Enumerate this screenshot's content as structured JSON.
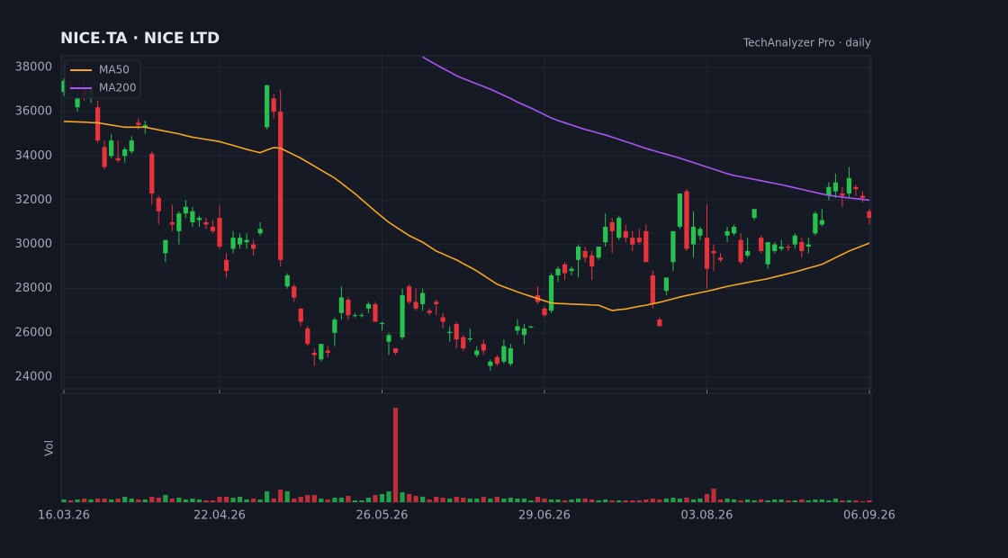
{
  "chart_data": {
    "type": "candlestick",
    "title": "NICE.TA  ·  NICE LTD",
    "subtitle": "TechAnalyzer Pro · daily",
    "volume_label": "Vol",
    "up_color": "#26c14f",
    "down_color": "#e8333d",
    "grid": true,
    "legend": "upper left",
    "ylim": [
      23470,
      38530
    ],
    "yticks": [
      24000,
      26000,
      28000,
      30000,
      32000,
      34000,
      36000,
      38000
    ],
    "categories": [
      "16.03.26",
      null,
      null,
      null,
      null,
      null,
      null,
      null,
      null,
      null,
      null,
      null,
      null,
      null,
      null,
      null,
      null,
      null,
      null,
      null,
      null,
      null,
      null,
      "22.04.26",
      null,
      null,
      null,
      null,
      null,
      null,
      null,
      null,
      null,
      null,
      null,
      null,
      null,
      null,
      null,
      null,
      null,
      null,
      null,
      null,
      null,
      null,
      null,
      "26.05.26",
      null,
      null,
      null,
      null,
      null,
      null,
      null,
      null,
      null,
      null,
      null,
      null,
      null,
      null,
      null,
      null,
      null,
      null,
      null,
      null,
      null,
      null,
      null,
      "29.06.26",
      null,
      null,
      null,
      null,
      null,
      null,
      null,
      null,
      null,
      null,
      null,
      null,
      null,
      null,
      null,
      null,
      null,
      null,
      null,
      null,
      null,
      null,
      null,
      "03.08.26",
      null,
      null,
      null,
      null,
      null,
      null,
      null,
      null,
      null,
      null,
      null,
      null,
      null,
      null,
      null,
      null,
      null,
      null,
      null,
      null,
      null,
      null,
      null,
      "06.09.26"
    ],
    "ohlc": [
      [
        36900,
        37500,
        36700,
        37400
      ],
      [
        37200,
        37600,
        36800,
        37000
      ],
      [
        36200,
        36900,
        36000,
        36600
      ],
      [
        37000,
        37400,
        36500,
        36700
      ],
      [
        36700,
        37200,
        36400,
        37000
      ],
      [
        36200,
        36500,
        34600,
        34700
      ],
      [
        34400,
        34700,
        33400,
        33500
      ],
      [
        34000,
        35000,
        33900,
        34700
      ],
      [
        33900,
        34700,
        33700,
        33800
      ],
      [
        34000,
        34400,
        33700,
        34300
      ],
      [
        34200,
        34900,
        34100,
        34700
      ],
      [
        35500,
        35700,
        35200,
        35400
      ],
      [
        35300,
        35600,
        35000,
        35400
      ],
      [
        34100,
        34200,
        31800,
        32300
      ],
      [
        32100,
        32200,
        30900,
        31500
      ],
      [
        29600,
        30200,
        29200,
        30200
      ],
      [
        31000,
        31800,
        30600,
        30900
      ],
      [
        30600,
        31500,
        30000,
        31400
      ],
      [
        31400,
        32000,
        31200,
        31700
      ],
      [
        31000,
        31700,
        30800,
        31500
      ],
      [
        31100,
        31300,
        30800,
        31200
      ],
      [
        31000,
        31200,
        30700,
        30900
      ],
      [
        30800,
        31100,
        30500,
        30600
      ],
      [
        31200,
        31800,
        29800,
        29900
      ],
      [
        29300,
        29600,
        28500,
        28800
      ],
      [
        29800,
        30600,
        29600,
        30300
      ],
      [
        30000,
        30500,
        29800,
        30300
      ],
      [
        30100,
        30500,
        29800,
        30200
      ],
      [
        30000,
        30200,
        29500,
        29800
      ],
      [
        30500,
        31000,
        30400,
        30700
      ],
      [
        35300,
        37200,
        35200,
        37200
      ],
      [
        36600,
        36800,
        35700,
        36000
      ],
      [
        36000,
        37000,
        29000,
        29300
      ],
      [
        28100,
        28700,
        28000,
        28600
      ],
      [
        28100,
        28200,
        27400,
        27600
      ],
      [
        27100,
        27100,
        26300,
        26500
      ],
      [
        26200,
        26300,
        25400,
        25500
      ],
      [
        25100,
        25300,
        24500,
        25000
      ],
      [
        24800,
        25500,
        24700,
        25500
      ],
      [
        25200,
        25400,
        24900,
        25100
      ],
      [
        26000,
        26700,
        25400,
        26600
      ],
      [
        26900,
        28100,
        26600,
        27600
      ],
      [
        27500,
        27600,
        26600,
        26800
      ],
      [
        26800,
        26900,
        26700,
        26800
      ],
      [
        26800,
        26900,
        26700,
        26800
      ],
      [
        27100,
        27400,
        26900,
        27300
      ],
      [
        27300,
        27400,
        26500,
        26500
      ],
      [
        26400,
        26500,
        26100,
        26450
      ],
      [
        25600,
        26000,
        25000,
        25900
      ],
      [
        25300,
        25300,
        25000,
        25100
      ],
      [
        25800,
        28000,
        25700,
        27700
      ],
      [
        28100,
        28200,
        27300,
        27400
      ],
      [
        27400,
        28000,
        27000,
        27100
      ],
      [
        27300,
        28000,
        27000,
        27800
      ],
      [
        27000,
        27100,
        26800,
        26900
      ],
      [
        27400,
        27500,
        26800,
        27300
      ],
      [
        26700,
        26900,
        26200,
        26500
      ],
      [
        26000,
        26300,
        25600,
        26050
      ],
      [
        26400,
        26500,
        25300,
        25700
      ],
      [
        25800,
        25900,
        25200,
        25300
      ],
      [
        25700,
        26200,
        25600,
        25750
      ],
      [
        25000,
        25400,
        24900,
        25200
      ],
      [
        25500,
        25700,
        25000,
        25200
      ],
      [
        24500,
        24800,
        24300,
        24700
      ],
      [
        24900,
        25000,
        24500,
        24600
      ],
      [
        24700,
        25700,
        24600,
        25400
      ],
      [
        24600,
        25500,
        24500,
        25300
      ],
      [
        26100,
        26600,
        25900,
        26300
      ],
      [
        25900,
        26400,
        25500,
        26200
      ],
      [
        26250,
        26300,
        26200,
        26300
      ],
      [
        27700,
        28100,
        27300,
        27400
      ],
      [
        27100,
        27200,
        26700,
        26800
      ],
      [
        27000,
        28700,
        26900,
        28600
      ],
      [
        28600,
        29000,
        28300,
        28900
      ],
      [
        29100,
        29200,
        28400,
        28700
      ],
      [
        28800,
        29000,
        28600,
        28900
      ],
      [
        29300,
        30000,
        28500,
        29900
      ],
      [
        29700,
        29900,
        29200,
        29400
      ],
      [
        29500,
        29700,
        28400,
        29000
      ],
      [
        29400,
        29900,
        29300,
        29900
      ],
      [
        30100,
        31400,
        29900,
        30800
      ],
      [
        31000,
        31200,
        29600,
        30600
      ],
      [
        30300,
        31300,
        30200,
        31200
      ],
      [
        30600,
        30900,
        30100,
        30300
      ],
      [
        30300,
        30600,
        29700,
        30000
      ],
      [
        30300,
        30700,
        30000,
        30100
      ],
      [
        30600,
        30900,
        29200,
        29200
      ],
      [
        28600,
        28800,
        27100,
        27300
      ],
      [
        26600,
        26700,
        26300,
        26300
      ],
      [
        27900,
        28500,
        27700,
        28500
      ],
      [
        29200,
        30600,
        28800,
        30600
      ],
      [
        30800,
        32300,
        30700,
        32300
      ],
      [
        32400,
        32500,
        29700,
        29800
      ],
      [
        30000,
        31500,
        29400,
        30800
      ],
      [
        30400,
        30800,
        30200,
        30700
      ],
      [
        30300,
        31800,
        28000,
        28900
      ],
      [
        29700,
        30000,
        28800,
        29600
      ],
      [
        29400,
        29600,
        29200,
        29300
      ],
      [
        30400,
        30800,
        30100,
        30600
      ],
      [
        30500,
        30900,
        30400,
        30800
      ],
      [
        30200,
        30500,
        29100,
        29200
      ],
      [
        29500,
        30300,
        29400,
        29700
      ],
      [
        31200,
        31600,
        31100,
        31600
      ],
      [
        30300,
        30400,
        29600,
        29700
      ],
      [
        29100,
        30100,
        28900,
        30100
      ],
      [
        29700,
        30100,
        29600,
        30000
      ],
      [
        29800,
        30200,
        29700,
        29900
      ],
      [
        29900,
        30000,
        29700,
        29850
      ],
      [
        30000,
        30500,
        29800,
        30400
      ],
      [
        30100,
        30300,
        29400,
        29700
      ],
      [
        29900,
        30300,
        29600,
        30000
      ],
      [
        30500,
        31500,
        30400,
        31400
      ],
      [
        30900,
        31600,
        30800,
        31100
      ],
      [
        32200,
        32800,
        32000,
        32600
      ],
      [
        32400,
        33200,
        32100,
        32800
      ],
      [
        32300,
        32600,
        31700,
        32200
      ],
      [
        32300,
        33500,
        32100,
        33000
      ],
      [
        32600,
        32700,
        32200,
        32500
      ],
      [
        32200,
        32400,
        31900,
        32100
      ],
      [
        31500,
        31600,
        30900,
        31200
      ]
    ],
    "series": [
      {
        "name": "MA50",
        "color": "#f5a623",
        "values": [
          35560,
          35550,
          35540,
          35530,
          35510,
          35500,
          35450,
          35400,
          35350,
          35300,
          35300,
          35300,
          35300,
          35240,
          35180,
          35120,
          35060,
          35000,
          34920,
          34850,
          34800,
          34750,
          34700,
          34650,
          34560,
          34480,
          34390,
          34300,
          34220,
          34150,
          34270,
          34380,
          34350,
          34200,
          34050,
          33900,
          33720,
          33540,
          33360,
          33180,
          33000,
          32770,
          32530,
          32300,
          32030,
          31770,
          31500,
          31250,
          31000,
          30800,
          30600,
          30400,
          30250,
          30100,
          29900,
          29700,
          29570,
          29430,
          29300,
          29130,
          28970,
          28800,
          28600,
          28400,
          28200,
          28080,
          27970,
          27850,
          27750,
          27650,
          27550,
          27450,
          27350,
          27330,
          27320,
          27300,
          27290,
          27280,
          27260,
          27250,
          27130,
          27010,
          27050,
          27080,
          27140,
          27200,
          27250,
          27320,
          27380,
          27460,
          27540,
          27620,
          27690,
          27750,
          27820,
          27880,
          27950,
          28030,
          28100,
          28160,
          28220,
          28280,
          28340,
          28390,
          28450,
          28530,
          28600,
          28680,
          28750,
          28840,
          28930,
          29010,
          29100,
          29250,
          29400,
          29550,
          29700,
          29820,
          29940,
          30060
        ]
      },
      {
        "name": "MA200",
        "color": "#a855f7",
        "values": [
          null,
          null,
          null,
          null,
          null,
          null,
          null,
          null,
          null,
          null,
          null,
          null,
          null,
          null,
          null,
          null,
          null,
          null,
          null,
          null,
          null,
          null,
          null,
          null,
          null,
          null,
          null,
          null,
          null,
          null,
          null,
          null,
          null,
          null,
          null,
          null,
          null,
          null,
          null,
          null,
          null,
          null,
          null,
          null,
          null,
          null,
          null,
          null,
          null,
          null,
          null,
          null,
          null,
          38480,
          38300,
          38130,
          37960,
          37800,
          37630,
          37500,
          37380,
          37260,
          37140,
          37020,
          36880,
          36740,
          36600,
          36440,
          36300,
          36170,
          36020,
          35870,
          35720,
          35600,
          35500,
          35400,
          35300,
          35200,
          35120,
          35030,
          34950,
          34850,
          34750,
          34650,
          34550,
          34440,
          34340,
          34250,
          34160,
          34080,
          33990,
          33900,
          33800,
          33700,
          33600,
          33500,
          33400,
          33300,
          33200,
          33120,
          33060,
          33000,
          32940,
          32880,
          32820,
          32760,
          32700,
          32630,
          32560,
          32490,
          32420,
          32350,
          32280,
          32220,
          32180,
          32140,
          32100,
          32070,
          32040,
          32000
        ]
      }
    ],
    "volume": {
      "ylim": [
        0,
        120
      ],
      "values": [
        3,
        2,
        3,
        4,
        3,
        4,
        4,
        3,
        4,
        6,
        4,
        3,
        3,
        6,
        5,
        8,
        4,
        5,
        3,
        4,
        3,
        2,
        2,
        6,
        6,
        5,
        6,
        3,
        4,
        3,
        12,
        4,
        14,
        12,
        4,
        6,
        8,
        8,
        4,
        3,
        5,
        5,
        7,
        2,
        2,
        5,
        8,
        9,
        12,
        104,
        11,
        9,
        7,
        6,
        3,
        6,
        5,
        4,
        6,
        5,
        4,
        4,
        6,
        4,
        6,
        4,
        5,
        4,
        4,
        2,
        6,
        4,
        3,
        3,
        2,
        3,
        4,
        4,
        3,
        2,
        3,
        2,
        2,
        2,
        2,
        2,
        3,
        4,
        3,
        4,
        5,
        4,
        5,
        3,
        4,
        9,
        15,
        3,
        4,
        3,
        2,
        3,
        2,
        3,
        2,
        3,
        3,
        2,
        2,
        3,
        2,
        3,
        3,
        2,
        4,
        2,
        2,
        2,
        1,
        2
      ]
    }
  }
}
